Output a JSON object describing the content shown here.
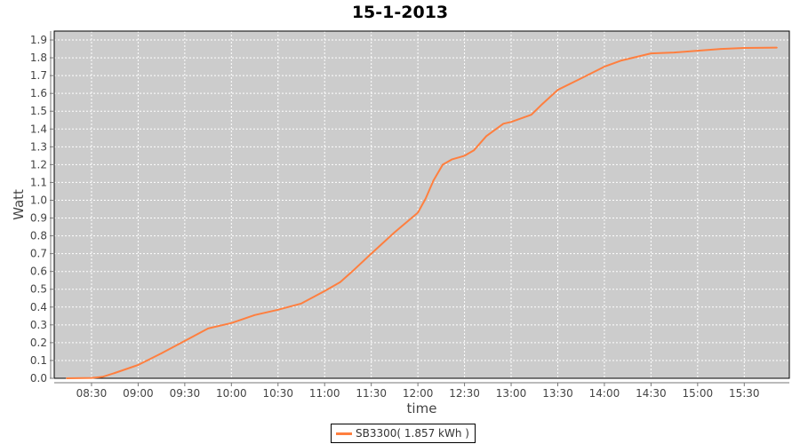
{
  "chart_data": {
    "type": "line",
    "title": "15-1-2013",
    "xlabel": "time",
    "ylabel": "Watt",
    "xlim": [
      "08:06",
      "15:59"
    ],
    "ylim": [
      0,
      1.95
    ],
    "x_ticks": [
      "08:30",
      "09:00",
      "09:30",
      "10:00",
      "10:30",
      "11:00",
      "11:30",
      "12:00",
      "12:30",
      "13:00",
      "13:30",
      "14:00",
      "14:30",
      "15:00",
      "15:30"
    ],
    "y_ticks": [
      "0.0",
      "0.1",
      "0.2",
      "0.3",
      "0.4",
      "0.5",
      "0.6",
      "0.7",
      "0.8",
      "0.9",
      "1.0",
      "1.1",
      "1.2",
      "1.3",
      "1.4",
      "1.5",
      "1.6",
      "1.7",
      "1.8",
      "1.9"
    ],
    "grid": true,
    "legend_position": "bottom",
    "plot_background": "#cccccc",
    "series": [
      {
        "name": "SB3300( 1.857 kWh )",
        "color": "#ff7f3f",
        "x": [
          "08:14",
          "08:30",
          "08:37",
          "08:45",
          "09:00",
          "09:15",
          "09:30",
          "09:45",
          "10:00",
          "10:15",
          "10:30",
          "10:45",
          "11:00",
          "11:10",
          "11:19",
          "11:30",
          "11:45",
          "12:00",
          "12:05",
          "12:10",
          "12:16",
          "12:22",
          "12:30",
          "12:36",
          "12:44",
          "12:55",
          "13:00",
          "13:13",
          "13:20",
          "13:30",
          "13:44",
          "14:00",
          "14:11",
          "14:30",
          "14:45",
          "15:00",
          "15:15",
          "15:30",
          "15:51"
        ],
        "y": [
          0.0,
          0.002,
          0.008,
          0.03,
          0.075,
          0.14,
          0.21,
          0.28,
          0.31,
          0.355,
          0.385,
          0.42,
          0.49,
          0.54,
          0.61,
          0.7,
          0.82,
          0.93,
          1.01,
          1.11,
          1.2,
          1.23,
          1.25,
          1.28,
          1.36,
          1.43,
          1.44,
          1.48,
          1.54,
          1.62,
          1.68,
          1.75,
          1.785,
          1.825,
          1.83,
          1.84,
          1.85,
          1.855,
          1.857
        ]
      }
    ]
  }
}
